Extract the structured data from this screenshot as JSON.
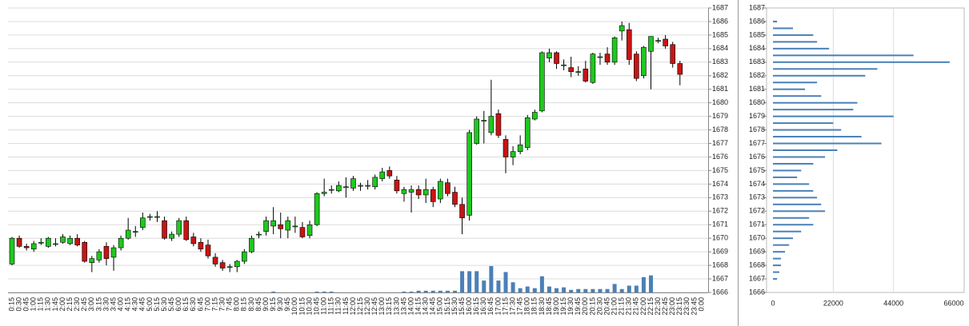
{
  "chart_data": [
    {
      "type": "candlestick",
      "x": [
        "0:15",
        "0:30",
        "0:45",
        "1:00",
        "1:15",
        "1:30",
        "1:45",
        "2:00",
        "2:15",
        "2:30",
        "2:45",
        "3:00",
        "3:15",
        "3:30",
        "3:45",
        "4:00",
        "4:15",
        "4:30",
        "4:45",
        "5:00",
        "5:15",
        "5:30",
        "5:45",
        "6:00",
        "6:15",
        "6:30",
        "6:45",
        "7:00",
        "7:15",
        "7:30",
        "7:45",
        "8:00",
        "8:15",
        "8:30",
        "8:45",
        "9:00",
        "9:15",
        "9:30",
        "9:45",
        "10:00",
        "10:15",
        "10:30",
        "10:45",
        "11:00",
        "11:15",
        "11:30",
        "11:45",
        "12:00",
        "12:15",
        "12:30",
        "12:45",
        "13:00",
        "13:15",
        "13:30",
        "13:45",
        "14:00",
        "14:15",
        "14:30",
        "14:45",
        "15:00",
        "15:15",
        "15:30",
        "15:45",
        "16:00",
        "16:15",
        "16:30",
        "16:45",
        "17:00",
        "17:15",
        "17:30",
        "17:45",
        "18:00",
        "18:15",
        "18:30",
        "18:45",
        "19:00",
        "19:15",
        "19:30",
        "19:45",
        "20:00",
        "20:15",
        "20:30",
        "20:45",
        "21:00",
        "21:15",
        "21:30",
        "21:45",
        "22:00",
        "22:15",
        "22:30",
        "22:45",
        "23:00",
        "23:15",
        "23:30",
        "23:45",
        "0:00"
      ],
      "open": [
        1668.1,
        1670.0,
        1669.4,
        1669.2,
        1669.7,
        1669.4,
        1669.6,
        1669.7,
        1669.6,
        1670.0,
        1669.7,
        1668.2,
        1668.4,
        1669.4,
        1668.6,
        1669.3,
        1670.0,
        1670.5,
        1670.8,
        1671.6,
        1671.6,
        1671.3,
        1670.0,
        1670.3,
        1671.3,
        1670.1,
        1669.7,
        1669.5,
        1668.6,
        1668.2,
        1667.9,
        1667.9,
        1668.3,
        1669.0,
        1670.3,
        1670.5,
        1670.9,
        1671.0,
        1670.6,
        1670.9,
        1670.8,
        1670.2,
        1671.0,
        1673.3,
        1673.6,
        1673.5,
        1673.8,
        1673.7,
        1673.9,
        1673.9,
        1673.8,
        1674.4,
        1675.0,
        1674.3,
        1673.3,
        1673.4,
        1673.6,
        1673.2,
        1673.6,
        1672.9,
        1674.1,
        1673.4,
        1672.5,
        1671.7,
        1677.0,
        1678.7,
        1677.8,
        1679.2,
        1677.3,
        1676.0,
        1676.4,
        1676.7,
        1678.8,
        1679.4,
        1683.3,
        1683.7,
        1682.8,
        1682.6,
        1682.3,
        1682.5,
        1681.5,
        1683.4,
        1683.6,
        1683.0,
        1685.3,
        1685.4,
        1683.6,
        1682.0,
        1683.8,
        1684.6,
        1684.7,
        1684.3,
        1682.9,
        null,
        null,
        null
      ],
      "high": [
        1670.1,
        1670.2,
        1669.6,
        1669.8,
        1670.0,
        1670.1,
        1670.0,
        1670.3,
        1670.2,
        1670.3,
        1669.8,
        1668.7,
        1669.2,
        1669.7,
        1669.5,
        1670.2,
        1671.5,
        1670.9,
        1671.9,
        1671.8,
        1672.0,
        1671.6,
        1670.5,
        1671.5,
        1671.6,
        1670.4,
        1670.0,
        1669.9,
        1668.9,
        1668.4,
        1668.1,
        1668.4,
        1669.2,
        1670.2,
        1670.5,
        1671.6,
        1672.3,
        1671.9,
        1671.6,
        1671.6,
        1671.2,
        1671.3,
        1673.4,
        1674.4,
        1673.9,
        1674.2,
        1674.5,
        1674.6,
        1674.1,
        1674.3,
        1674.7,
        1675.2,
        1675.3,
        1674.6,
        1673.8,
        1673.9,
        1673.9,
        1674.4,
        1673.8,
        1674.4,
        1674.4,
        1673.8,
        1673.0,
        1678.0,
        1679.0,
        1679.4,
        1681.7,
        1679.5,
        1677.6,
        1676.8,
        1677.6,
        1679.1,
        1679.5,
        1683.8,
        1684.0,
        1683.8,
        1683.2,
        1683.4,
        1682.7,
        1683.1,
        1683.7,
        1683.7,
        1684.1,
        1684.9,
        1686.0,
        1685.9,
        1683.8,
        1684.2,
        1684.9,
        1684.8,
        1685.0,
        1684.5,
        1683.1,
        null,
        null,
        null
      ],
      "low": [
        1668.0,
        1669.3,
        1669.1,
        1669.0,
        1669.5,
        1669.3,
        1669.4,
        1669.6,
        1669.5,
        1669.4,
        1668.2,
        1667.5,
        1668.2,
        1668.0,
        1667.6,
        1669.1,
        1669.9,
        1670.1,
        1670.6,
        1671.3,
        1671.2,
        1669.9,
        1669.8,
        1670.1,
        1669.8,
        1669.4,
        1669.0,
        1668.5,
        1667.9,
        1667.6,
        1667.5,
        1667.5,
        1668.1,
        1668.9,
        1670.0,
        1670.2,
        1670.3,
        1670.0,
        1670.0,
        1670.4,
        1670.0,
        1670.0,
        1670.9,
        1673.1,
        1673.3,
        1673.4,
        1673.0,
        1673.5,
        1673.5,
        1673.6,
        1673.6,
        1674.2,
        1674.4,
        1673.3,
        1672.7,
        1671.9,
        1672.9,
        1672.6,
        1672.3,
        1672.6,
        1673.1,
        1672.3,
        1670.3,
        1671.3,
        1676.9,
        1677.0,
        1677.6,
        1677.4,
        1674.8,
        1675.4,
        1676.2,
        1676.5,
        1678.7,
        1679.3,
        1683.0,
        1682.5,
        1682.4,
        1681.9,
        1682.0,
        1681.5,
        1681.4,
        1682.8,
        1682.8,
        1682.8,
        1684.6,
        1682.8,
        1681.6,
        1681.8,
        1681.0,
        1684.4,
        1684.0,
        1682.6,
        1681.3,
        null,
        null,
        null
      ],
      "close": [
        1670.0,
        1669.4,
        1669.3,
        1669.6,
        1669.7,
        1670.0,
        1669.6,
        1670.1,
        1670.0,
        1669.5,
        1668.3,
        1668.5,
        1669.0,
        1668.5,
        1669.3,
        1670.0,
        1670.6,
        1670.5,
        1671.5,
        1671.6,
        1671.6,
        1670.0,
        1670.3,
        1671.3,
        1669.9,
        1669.6,
        1669.2,
        1668.7,
        1668.1,
        1667.8,
        1667.9,
        1668.3,
        1669.0,
        1670.0,
        1670.3,
        1671.3,
        1671.3,
        1670.7,
        1671.3,
        1670.9,
        1670.1,
        1671.0,
        1673.3,
        1673.4,
        1673.6,
        1673.9,
        1673.8,
        1674.4,
        1673.9,
        1673.9,
        1674.5,
        1674.9,
        1674.6,
        1673.5,
        1673.6,
        1673.6,
        1673.2,
        1673.6,
        1672.7,
        1674.2,
        1673.3,
        1672.5,
        1671.5,
        1677.8,
        1678.8,
        1678.7,
        1679.0,
        1677.6,
        1676.0,
        1676.4,
        1676.9,
        1678.9,
        1679.3,
        1683.7,
        1683.7,
        1682.9,
        1682.8,
        1682.3,
        1682.3,
        1681.6,
        1683.6,
        1683.4,
        1683.0,
        1684.8,
        1685.7,
        1683.2,
        1681.8,
        1684.1,
        1684.9,
        1684.6,
        1684.2,
        1682.9,
        1682.1,
        null,
        null,
        null
      ],
      "volume": [
        0,
        0,
        0,
        0,
        0,
        0,
        0,
        0,
        0,
        0,
        0,
        0,
        0,
        0,
        0,
        0,
        0,
        0,
        0,
        0,
        0,
        0,
        0,
        0,
        0,
        0,
        0,
        0,
        0,
        0,
        0,
        0,
        0,
        0,
        0,
        0,
        1000,
        0,
        0,
        0,
        0,
        0,
        1000,
        1000,
        1000,
        0,
        0,
        0,
        0,
        0,
        0,
        0,
        0,
        0,
        1000,
        1000,
        2000,
        2000,
        2000,
        2000,
        2000,
        2000,
        25000,
        25000,
        25000,
        14000,
        31000,
        14000,
        24000,
        12000,
        5000,
        7000,
        5000,
        19000,
        7000,
        5000,
        6000,
        3000,
        4000,
        4000,
        4000,
        4000,
        4000,
        10000,
        4000,
        8000,
        8000,
        18000,
        20000,
        0,
        0,
        0,
        0,
        null,
        null,
        null
      ],
      "up_color": "#1ec81e",
      "down_color": "#c81414",
      "volume_color": "#4a80b8",
      "ylim": [
        1666,
        1687
      ],
      "yticks": [
        1666,
        1667,
        1668,
        1669,
        1670,
        1671,
        1672,
        1673,
        1674,
        1675,
        1676,
        1677,
        1678,
        1679,
        1680,
        1681,
        1682,
        1683,
        1684,
        1685,
        1686,
        1687
      ],
      "grid": true
    },
    {
      "type": "bar",
      "orientation": "horizontal",
      "categories": [
        1667,
        1667.5,
        1668,
        1668.5,
        1669,
        1669.5,
        1670,
        1670.5,
        1671,
        1671.5,
        1672,
        1672.5,
        1673,
        1673.5,
        1674,
        1674.5,
        1675,
        1675.5,
        1676,
        1676.5,
        1677,
        1677.5,
        1678,
        1678.5,
        1679,
        1679.5,
        1680,
        1680.5,
        1681,
        1681.5,
        1682,
        1682.5,
        1683,
        1683.5,
        1684,
        1684.5,
        1685,
        1685.5,
        1686
      ],
      "values": [
        1500,
        2300,
        2900,
        2900,
        4400,
        5900,
        7300,
        10300,
        14700,
        13200,
        19000,
        17600,
        16100,
        14700,
        13200,
        8800,
        10300,
        14700,
        19000,
        23500,
        39600,
        32300,
        24900,
        22000,
        44000,
        29300,
        30800,
        17600,
        11700,
        16100,
        33700,
        38100,
        64500,
        51300,
        20500,
        16100,
        14700,
        7300,
        1500
      ],
      "color": "#4a80b8",
      "xlim": [
        0,
        66000
      ],
      "xticks": [
        0,
        22000,
        44000,
        66000
      ],
      "ylim": [
        1666,
        1687
      ],
      "yticks": [
        1666,
        1667,
        1668,
        1669,
        1670,
        1671,
        1672,
        1673,
        1674,
        1675,
        1676,
        1677,
        1678,
        1679,
        1680,
        1681,
        1682,
        1683,
        1684,
        1685,
        1686,
        1687
      ],
      "grid": true
    }
  ]
}
